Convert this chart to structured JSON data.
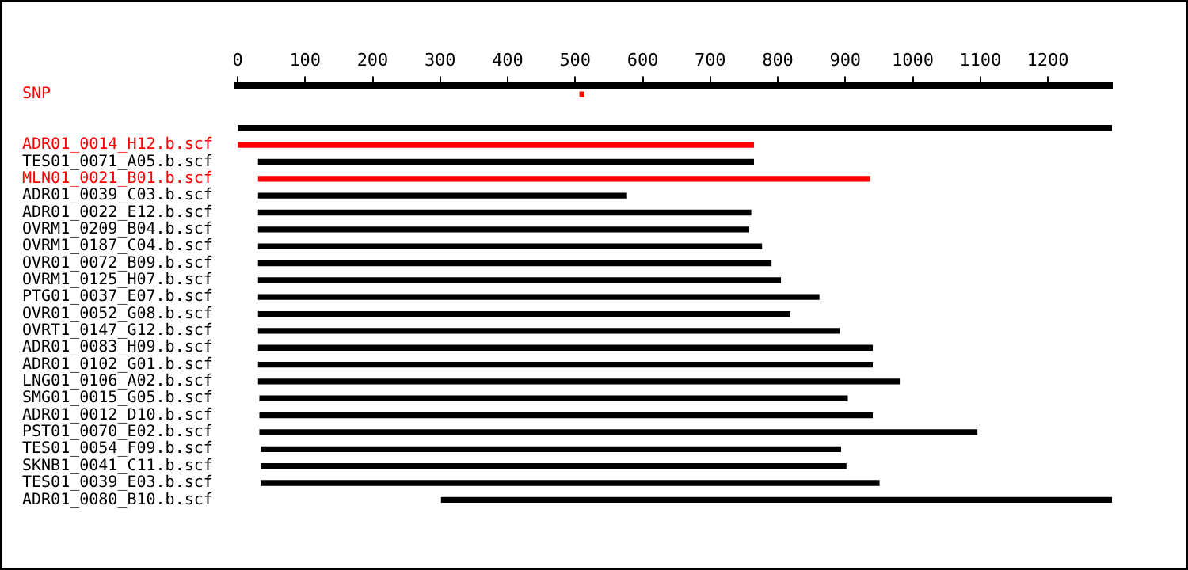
{
  "chart_data": {
    "type": "bar",
    "orientation": "horizontal",
    "categories": [
      "SNP",
      null,
      null,
      "ADR01_0014_H12.b.scf",
      "TES01_0071_A05.b.scf",
      "MLN01_0021_B01.b.scf",
      "ADR01_0039_C03.b.scf",
      "ADR01_0022_E12.b.scf",
      "OVRM1_0209_B04.b.scf",
      "OVRM1_0187_C04.b.scf",
      "OVR01_0072_B09.b.scf",
      "OVRM1_0125_H07.b.scf",
      "PTG01_0037_E07.b.scf",
      "OVR01_0052_G08.b.scf",
      "OVRT1_0147_G12.b.scf",
      "ADR01_0083_H09.b.scf",
      "ADR01_0102_G01.b.scf",
      "LNG01_0106_A02.b.scf",
      "SMG01_0015_G05.b.scf",
      "ADR01_0012_D10.b.scf",
      "PST01_0070_E02.b.scf",
      "TES01_0054_F09.b.scf",
      "SKNB1_0041_C11.b.scf",
      "TES01_0039_E03.b.scf",
      "ADR01_0080_B10.b.scf"
    ],
    "base": [
      507,
      null,
      0,
      0,
      31,
      31,
      31,
      31,
      31,
      31,
      31,
      31,
      31,
      31,
      31,
      31,
      31,
      31,
      33,
      33,
      33,
      35,
      35,
      35,
      302
    ],
    "values": [
      6,
      null,
      1295,
      764,
      733,
      905,
      545,
      729,
      726,
      745,
      759,
      773,
      830,
      787,
      860,
      909,
      909,
      949,
      870,
      907,
      1062,
      858,
      866,
      915,
      993
    ],
    "colors": [
      "#ff0000",
      "#000000",
      "#000000",
      "#ff0000",
      "#000000",
      "#ff0000",
      "#000000",
      "#000000",
      "#000000",
      "#000000",
      "#000000",
      "#000000",
      "#000000",
      "#000000",
      "#000000",
      "#000000",
      "#000000",
      "#000000",
      "#000000",
      "#000000",
      "#000000",
      "#000000",
      "#000000",
      "#000000",
      "#000000"
    ],
    "xlim": [
      0,
      1295
    ],
    "xticks": [
      0,
      100,
      200,
      300,
      400,
      500,
      600,
      700,
      800,
      900,
      1000,
      1100,
      1200
    ],
    "grid": false,
    "legend": false
  }
}
